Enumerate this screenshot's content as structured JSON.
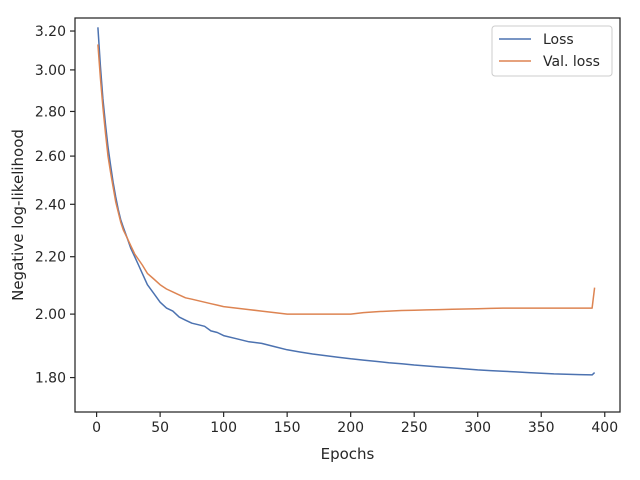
{
  "chart_data": {
    "type": "line",
    "xlabel": "Epochs",
    "ylabel": "Negative log-likelihood",
    "yscale": "log",
    "xlim": [
      -17,
      412
    ],
    "ylim": [
      1.7,
      3.27
    ],
    "x_ticks": [
      0,
      50,
      100,
      150,
      200,
      250,
      300,
      350,
      400
    ],
    "x_tick_labels": [
      "0",
      "50",
      "100",
      "150",
      "200",
      "250",
      "300",
      "350",
      "400"
    ],
    "y_ticks": [
      1.8,
      2.0,
      2.2,
      2.4,
      2.6,
      2.8,
      3.0,
      3.2
    ],
    "y_tick_labels": [
      "1.80",
      "2.00",
      "2.20",
      "2.40",
      "2.60",
      "2.80",
      "3.00",
      "3.20"
    ],
    "grid": false,
    "legend_position": "top-right",
    "series": [
      {
        "name": "Loss",
        "color": "#4c72b0",
        "points": [
          [
            1,
            3.22
          ],
          [
            3,
            3.02
          ],
          [
            5,
            2.86
          ],
          [
            7,
            2.74
          ],
          [
            9,
            2.64
          ],
          [
            11,
            2.56
          ],
          [
            13,
            2.49
          ],
          [
            15,
            2.43
          ],
          [
            17,
            2.38
          ],
          [
            19,
            2.34
          ],
          [
            21,
            2.31
          ],
          [
            24,
            2.27
          ],
          [
            27,
            2.23
          ],
          [
            30,
            2.2
          ],
          [
            33,
            2.17
          ],
          [
            36,
            2.14
          ],
          [
            40,
            2.1
          ],
          [
            45,
            2.07
          ],
          [
            50,
            2.04
          ],
          [
            55,
            2.02
          ],
          [
            60,
            2.01
          ],
          [
            65,
            1.99
          ],
          [
            70,
            1.98
          ],
          [
            75,
            1.97
          ],
          [
            80,
            1.965
          ],
          [
            85,
            1.96
          ],
          [
            90,
            1.945
          ],
          [
            95,
            1.94
          ],
          [
            100,
            1.93
          ],
          [
            110,
            1.92
          ],
          [
            120,
            1.91
          ],
          [
            130,
            1.905
          ],
          [
            140,
            1.895
          ],
          [
            150,
            1.885
          ],
          [
            160,
            1.878
          ],
          [
            170,
            1.872
          ],
          [
            180,
            1.867
          ],
          [
            190,
            1.862
          ],
          [
            200,
            1.857
          ],
          [
            210,
            1.853
          ],
          [
            220,
            1.849
          ],
          [
            230,
            1.845
          ],
          [
            240,
            1.842
          ],
          [
            250,
            1.838
          ],
          [
            260,
            1.835
          ],
          [
            270,
            1.832
          ],
          [
            280,
            1.829
          ],
          [
            290,
            1.826
          ],
          [
            300,
            1.823
          ],
          [
            310,
            1.821
          ],
          [
            320,
            1.819
          ],
          [
            330,
            1.817
          ],
          [
            340,
            1.815
          ],
          [
            350,
            1.813
          ],
          [
            360,
            1.811
          ],
          [
            370,
            1.81
          ],
          [
            380,
            1.809
          ],
          [
            390,
            1.808
          ],
          [
            392,
            1.815
          ]
        ]
      },
      {
        "name": "Val. loss",
        "color": "#dd8452",
        "points": [
          [
            1,
            3.13
          ],
          [
            3,
            2.96
          ],
          [
            5,
            2.82
          ],
          [
            7,
            2.7
          ],
          [
            9,
            2.6
          ],
          [
            11,
            2.53
          ],
          [
            13,
            2.47
          ],
          [
            15,
            2.41
          ],
          [
            17,
            2.37
          ],
          [
            19,
            2.33
          ],
          [
            21,
            2.3
          ],
          [
            24,
            2.27
          ],
          [
            27,
            2.24
          ],
          [
            30,
            2.21
          ],
          [
            33,
            2.19
          ],
          [
            36,
            2.17
          ],
          [
            40,
            2.14
          ],
          [
            45,
            2.12
          ],
          [
            50,
            2.1
          ],
          [
            55,
            2.085
          ],
          [
            60,
            2.075
          ],
          [
            65,
            2.065
          ],
          [
            70,
            2.055
          ],
          [
            75,
            2.05
          ],
          [
            80,
            2.045
          ],
          [
            85,
            2.04
          ],
          [
            90,
            2.035
          ],
          [
            95,
            2.03
          ],
          [
            100,
            2.025
          ],
          [
            110,
            2.02
          ],
          [
            120,
            2.015
          ],
          [
            130,
            2.01
          ],
          [
            140,
            2.005
          ],
          [
            150,
            2.0
          ],
          [
            160,
            2.0
          ],
          [
            170,
            2.0
          ],
          [
            180,
            2.0
          ],
          [
            190,
            2.0
          ],
          [
            200,
            2.0
          ],
          [
            210,
            2.005
          ],
          [
            220,
            2.008
          ],
          [
            230,
            2.01
          ],
          [
            240,
            2.012
          ],
          [
            250,
            2.013
          ],
          [
            260,
            2.014
          ],
          [
            270,
            2.015
          ],
          [
            280,
            2.016
          ],
          [
            290,
            2.017
          ],
          [
            300,
            2.018
          ],
          [
            310,
            2.019
          ],
          [
            320,
            2.02
          ],
          [
            330,
            2.02
          ],
          [
            340,
            2.02
          ],
          [
            350,
            2.02
          ],
          [
            360,
            2.02
          ],
          [
            370,
            2.02
          ],
          [
            380,
            2.02
          ],
          [
            390,
            2.02
          ],
          [
            392,
            2.09
          ]
        ]
      }
    ]
  }
}
